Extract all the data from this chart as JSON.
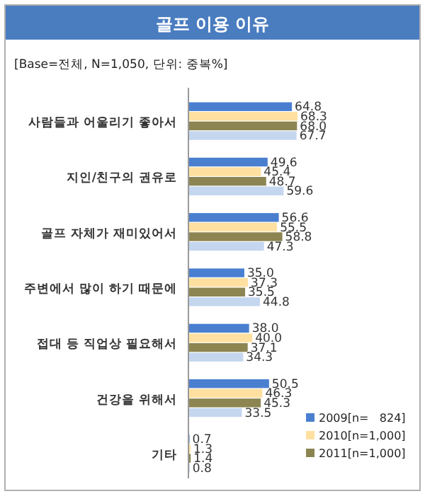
{
  "chart_data": {
    "type": "bar",
    "orientation": "horizontal",
    "title": "골프 이용 이유",
    "subtitle": "[Base=전체, N=1,050, 단위: 중복%]",
    "categories": [
      "사람들과 어울리기 좋아서",
      "지인/친구의 권유로",
      "골프 자체가 재미있어서",
      "주변에서 많이 하기 때문에",
      "접대 등 직업상 필요해서",
      "건강을 위해서",
      "기타"
    ],
    "series": [
      {
        "name": "2009[n=   824]",
        "color": "#4a7fd0",
        "values": [
          64.8,
          49.6,
          56.6,
          35.0,
          38.0,
          50.5,
          0.7
        ],
        "value_labels": [
          "64.8",
          "49.6",
          "56.6",
          "35.0",
          "38.0",
          "50.5",
          "0.7"
        ]
      },
      {
        "name": "2010[n=1,000]",
        "color": "#ffe0a0",
        "values": [
          68.3,
          45.4,
          55.5,
          37.3,
          40.0,
          46.3,
          1.3
        ],
        "value_labels": [
          "68.3",
          "45.4",
          "55.5",
          "37.3",
          "40.0",
          "46.3",
          "1.3"
        ]
      },
      {
        "name": "2011[n=1,000]",
        "color": "#8c8552",
        "values": [
          68.0,
          48.7,
          58.8,
          35.5,
          37.1,
          45.3,
          1.4
        ],
        "value_labels": [
          "68.0",
          "48.7",
          "58.8",
          "35.5",
          "37.1",
          "45.3",
          "1.4"
        ]
      },
      {
        "color": "#c5d6ef",
        "values": [
          67.7,
          59.6,
          47.3,
          44.8,
          34.3,
          33.5,
          0.8
        ],
        "value_labels": [
          "67.7",
          "59.6",
          "47.3",
          "44.8",
          "34.3",
          "33.5",
          "0.8"
        ]
      }
    ],
    "legend": "bottom right"
  }
}
